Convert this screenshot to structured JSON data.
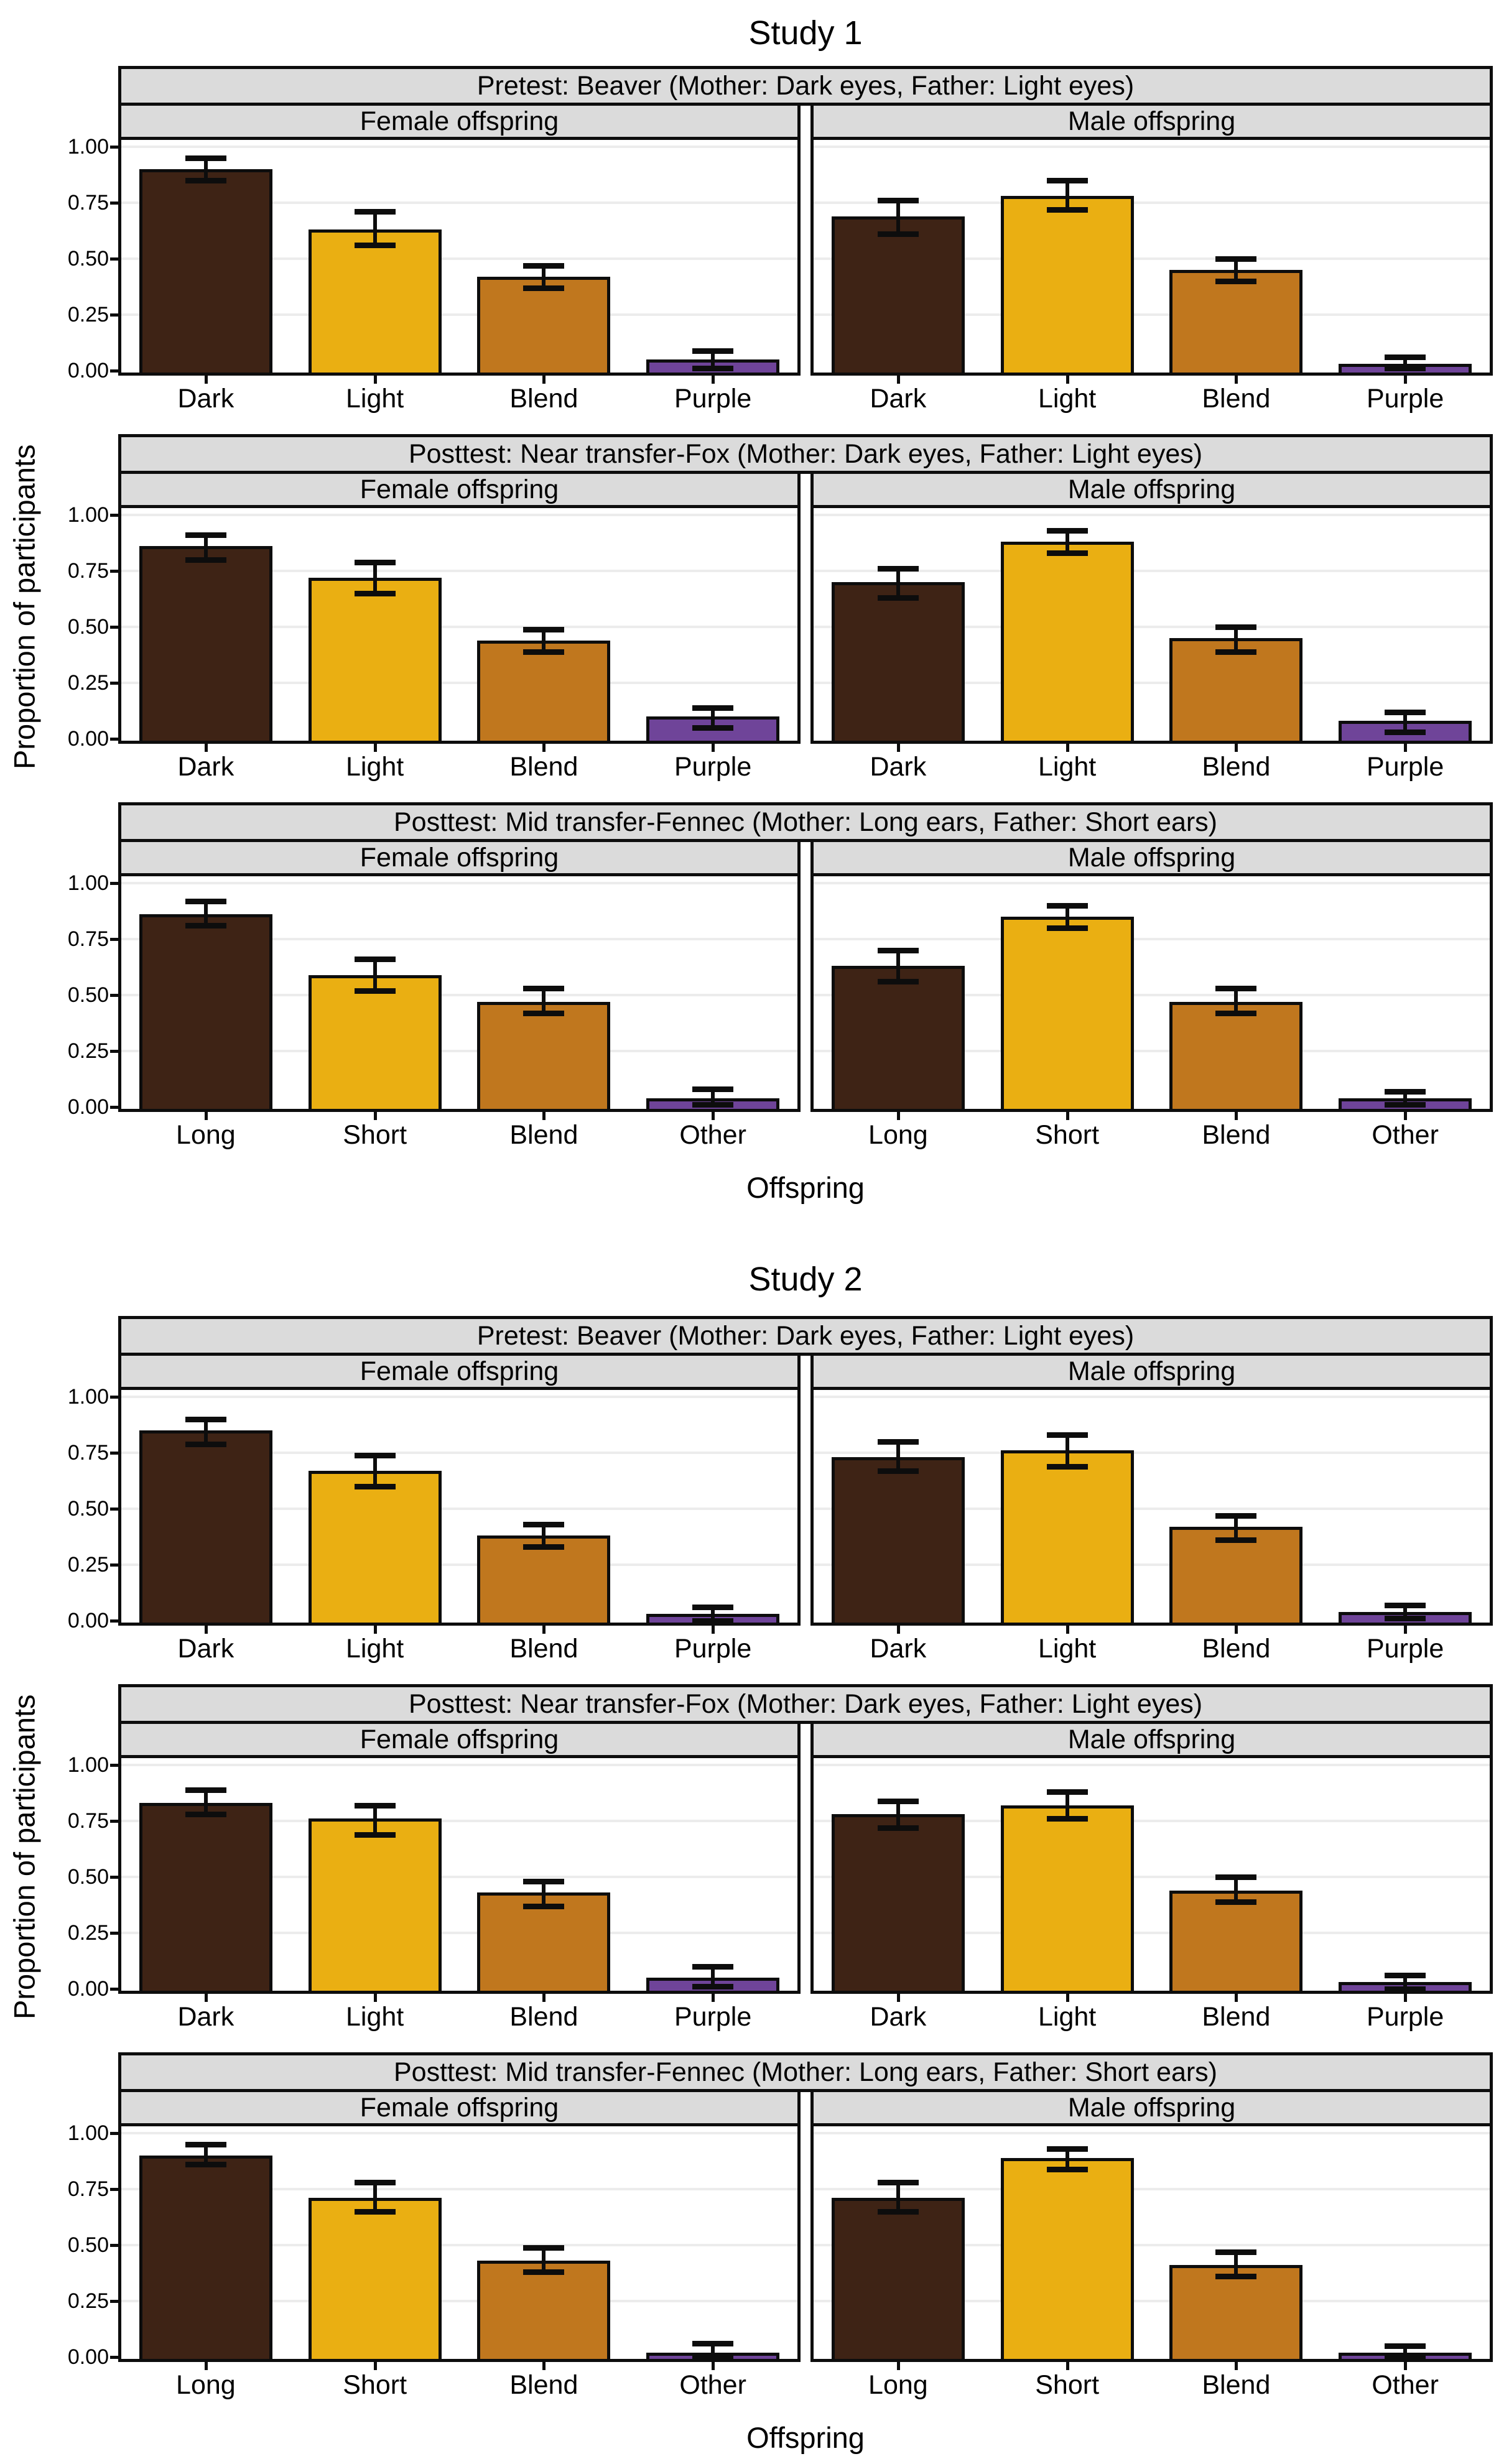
{
  "figure": {
    "y_axis_label": "Proportion of participants",
    "x_axis_label": "Offspring",
    "y_tick_labels": [
      "1.00",
      "0.75",
      "0.50",
      "0.25",
      "0.00"
    ],
    "colors": {
      "bar_dark_brown": "#3E2315",
      "bar_golden_yellow": "#EAAF12",
      "bar_orange_blend": "#C0771E",
      "bar_purple": "#6F4499",
      "strip_background": "#DBDBDB",
      "panel_border": "#0d0d0d",
      "gridline": "#ECECEC",
      "plot_background": "#FFFFFF"
    }
  },
  "chart_data": [
    {
      "type": "bar",
      "title": "Study 1",
      "xlabel": "Offspring",
      "ylabel": "Proportion of participants",
      "ylim": [
        0,
        1.05
      ],
      "y_ticks": [
        1.0,
        0.75,
        0.5,
        0.25,
        0.0
      ],
      "grid": "horizontal-major",
      "legend": "none",
      "error_bars": true,
      "panels": [
        {
          "strip": "Pretest: Beaver (Mother: Dark eyes, Father: Light eyes)",
          "categories": [
            "Dark",
            "Light",
            "Blend",
            "Purple"
          ],
          "bar_colors": [
            "#3E2315",
            "#EAAF12",
            "#C0771E",
            "#6F4499"
          ],
          "facets": [
            {
              "label": "Female offspring",
              "values": [
                0.9,
                0.63,
                0.42,
                0.05
              ],
              "ci_low": [
                0.85,
                0.56,
                0.37,
                0.01
              ],
              "ci_high": [
                0.95,
                0.71,
                0.47,
                0.09
              ]
            },
            {
              "label": "Male offspring",
              "values": [
                0.69,
                0.78,
                0.45,
                0.03
              ],
              "ci_low": [
                0.61,
                0.72,
                0.4,
                0.01
              ],
              "ci_high": [
                0.76,
                0.85,
                0.5,
                0.06
              ]
            }
          ]
        },
        {
          "strip": "Posttest: Near transfer-Fox (Mother: Dark eyes, Father: Light eyes)",
          "categories": [
            "Dark",
            "Light",
            "Blend",
            "Purple"
          ],
          "bar_colors": [
            "#3E2315",
            "#EAAF12",
            "#C0771E",
            "#6F4499"
          ],
          "facets": [
            {
              "label": "Female offspring",
              "values": [
                0.86,
                0.72,
                0.44,
                0.1
              ],
              "ci_low": [
                0.8,
                0.65,
                0.39,
                0.05
              ],
              "ci_high": [
                0.91,
                0.79,
                0.49,
                0.14
              ]
            },
            {
              "label": "Male offspring",
              "values": [
                0.7,
                0.88,
                0.45,
                0.08
              ],
              "ci_low": [
                0.63,
                0.83,
                0.39,
                0.03
              ],
              "ci_high": [
                0.76,
                0.93,
                0.5,
                0.12
              ]
            }
          ]
        },
        {
          "strip": "Posttest: Mid transfer-Fennec (Mother: Long ears, Father: Short ears)",
          "categories": [
            "Long",
            "Short",
            "Blend",
            "Other"
          ],
          "bar_colors": [
            "#3E2315",
            "#EAAF12",
            "#C0771E",
            "#6F4499"
          ],
          "facets": [
            {
              "label": "Female offspring",
              "values": [
                0.86,
                0.59,
                0.47,
                0.04
              ],
              "ci_low": [
                0.81,
                0.52,
                0.42,
                0.01
              ],
              "ci_high": [
                0.92,
                0.66,
                0.53,
                0.08
              ]
            },
            {
              "label": "Male offspring",
              "values": [
                0.63,
                0.85,
                0.47,
                0.04
              ],
              "ci_low": [
                0.56,
                0.8,
                0.42,
                0.01
              ],
              "ci_high": [
                0.7,
                0.9,
                0.53,
                0.07
              ]
            }
          ]
        }
      ]
    },
    {
      "type": "bar",
      "title": "Study 2",
      "xlabel": "Offspring",
      "ylabel": "Proportion of participants",
      "ylim": [
        0,
        1.05
      ],
      "y_ticks": [
        1.0,
        0.75,
        0.5,
        0.25,
        0.0
      ],
      "grid": "horizontal-major",
      "legend": "none",
      "error_bars": true,
      "panels": [
        {
          "strip": "Pretest: Beaver (Mother: Dark eyes, Father: Light eyes)",
          "categories": [
            "Dark",
            "Light",
            "Blend",
            "Purple"
          ],
          "bar_colors": [
            "#3E2315",
            "#EAAF12",
            "#C0771E",
            "#6F4499"
          ],
          "facets": [
            {
              "label": "Female offspring",
              "values": [
                0.85,
                0.67,
                0.38,
                0.03
              ],
              "ci_low": [
                0.79,
                0.6,
                0.33,
                0.0
              ],
              "ci_high": [
                0.9,
                0.74,
                0.43,
                0.06
              ]
            },
            {
              "label": "Male offspring",
              "values": [
                0.73,
                0.76,
                0.42,
                0.04
              ],
              "ci_low": [
                0.67,
                0.69,
                0.36,
                0.01
              ],
              "ci_high": [
                0.8,
                0.83,
                0.47,
                0.07
              ]
            }
          ]
        },
        {
          "strip": "Posttest: Near transfer-Fox (Mother: Dark eyes, Father: Light eyes)",
          "categories": [
            "Dark",
            "Light",
            "Blend",
            "Purple"
          ],
          "bar_colors": [
            "#3E2315",
            "#EAAF12",
            "#C0771E",
            "#6F4499"
          ],
          "facets": [
            {
              "label": "Female offspring",
              "values": [
                0.83,
                0.76,
                0.43,
                0.05
              ],
              "ci_low": [
                0.78,
                0.69,
                0.37,
                0.01
              ],
              "ci_high": [
                0.89,
                0.82,
                0.48,
                0.1
              ]
            },
            {
              "label": "Male offspring",
              "values": [
                0.78,
                0.82,
                0.44,
                0.03
              ],
              "ci_low": [
                0.72,
                0.76,
                0.39,
                0.0
              ],
              "ci_high": [
                0.84,
                0.88,
                0.5,
                0.06
              ]
            }
          ]
        },
        {
          "strip": "Posttest: Mid transfer-Fennec (Mother: Long ears, Father: Short ears)",
          "categories": [
            "Long",
            "Short",
            "Blend",
            "Other"
          ],
          "bar_colors": [
            "#3E2315",
            "#EAAF12",
            "#C0771E",
            "#6F4499"
          ],
          "facets": [
            {
              "label": "Female offspring",
              "values": [
                0.9,
                0.71,
                0.43,
                0.02
              ],
              "ci_low": [
                0.86,
                0.65,
                0.38,
                0.0
              ],
              "ci_high": [
                0.95,
                0.78,
                0.49,
                0.06
              ]
            },
            {
              "label": "Male offspring",
              "values": [
                0.71,
                0.89,
                0.41,
                0.02
              ],
              "ci_low": [
                0.65,
                0.84,
                0.36,
                0.0
              ],
              "ci_high": [
                0.78,
                0.93,
                0.47,
                0.05
              ]
            }
          ]
        }
      ]
    }
  ]
}
